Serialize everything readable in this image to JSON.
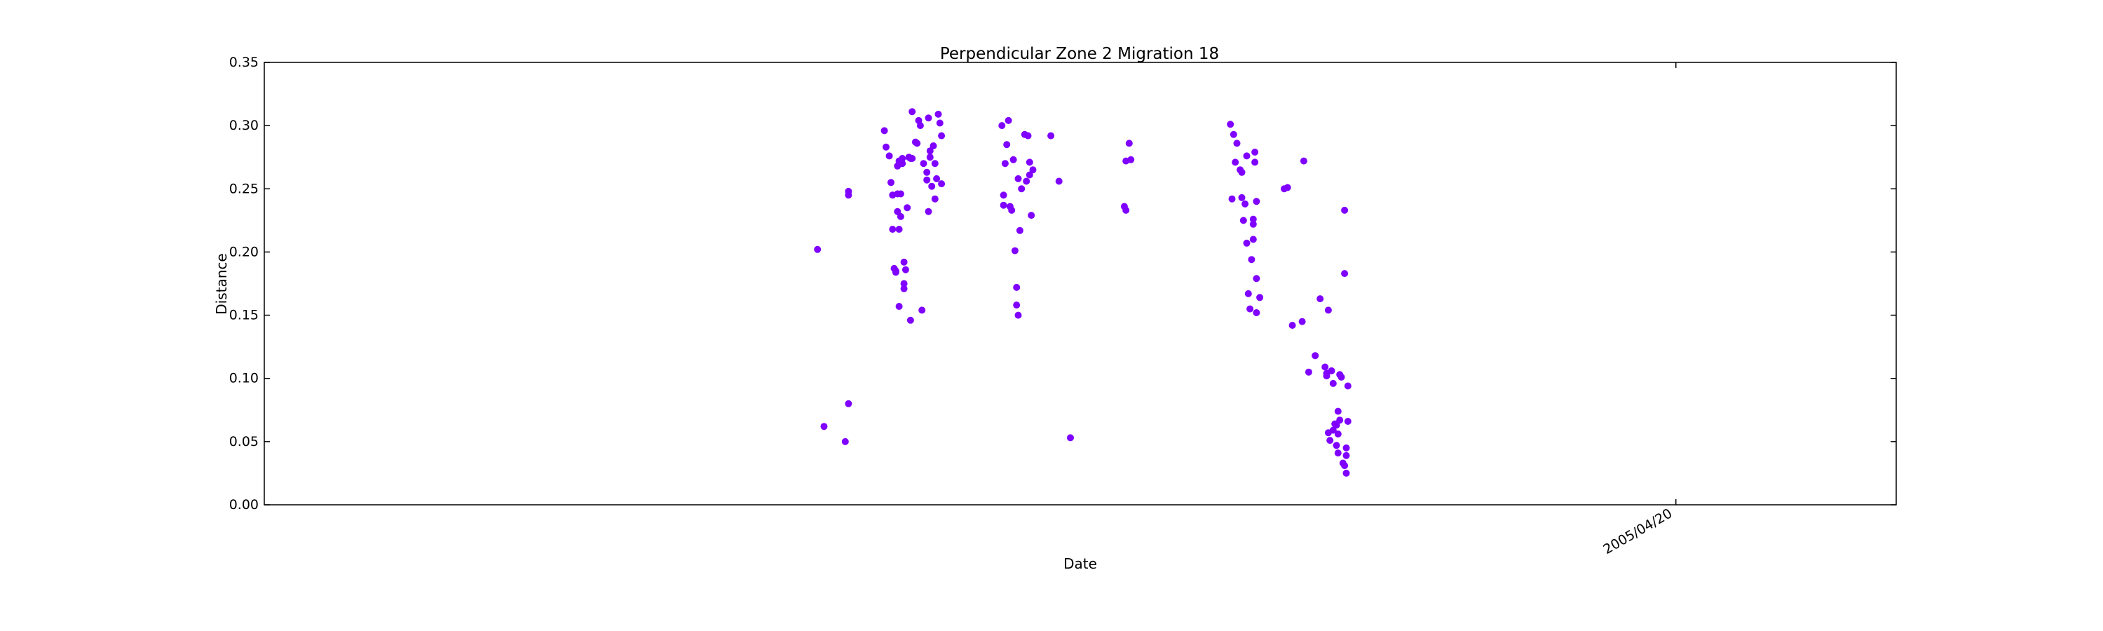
{
  "chart_data": {
    "type": "scatter",
    "title": "Perpendicular Zone 2 Migration 18",
    "xlabel": "Date",
    "ylabel": "Distance",
    "ylim": [
      0,
      0.35
    ],
    "y_ticks": [
      "0.00",
      "0.05",
      "0.10",
      "0.15",
      "0.20",
      "0.25",
      "0.30",
      "0.35"
    ],
    "x_ticks": [
      {
        "label": "2005/04/20",
        "x": 0.865
      }
    ],
    "xlim": [
      0,
      1
    ],
    "grid": false,
    "legend": "none",
    "marker_color": "#7f00ff",
    "points": [
      [
        0.339,
        0.202
      ],
      [
        0.343,
        0.062
      ],
      [
        0.356,
        0.05
      ],
      [
        0.358,
        0.08
      ],
      [
        0.358,
        0.248
      ],
      [
        0.358,
        0.245
      ],
      [
        0.38,
        0.296
      ],
      [
        0.381,
        0.283
      ],
      [
        0.383,
        0.276
      ],
      [
        0.384,
        0.255
      ],
      [
        0.385,
        0.245
      ],
      [
        0.385,
        0.218
      ],
      [
        0.386,
        0.187
      ],
      [
        0.387,
        0.184
      ],
      [
        0.387,
        0.185
      ],
      [
        0.388,
        0.268
      ],
      [
        0.388,
        0.246
      ],
      [
        0.388,
        0.232
      ],
      [
        0.389,
        0.272
      ],
      [
        0.389,
        0.218
      ],
      [
        0.389,
        0.157
      ],
      [
        0.39,
        0.246
      ],
      [
        0.39,
        0.228
      ],
      [
        0.391,
        0.27
      ],
      [
        0.391,
        0.274
      ],
      [
        0.392,
        0.192
      ],
      [
        0.392,
        0.175
      ],
      [
        0.392,
        0.171
      ],
      [
        0.393,
        0.186
      ],
      [
        0.394,
        0.235
      ],
      [
        0.395,
        0.275
      ],
      [
        0.396,
        0.274
      ],
      [
        0.396,
        0.146
      ],
      [
        0.397,
        0.311
      ],
      [
        0.397,
        0.274
      ],
      [
        0.399,
        0.287
      ],
      [
        0.4,
        0.286
      ],
      [
        0.401,
        0.304
      ],
      [
        0.402,
        0.3
      ],
      [
        0.403,
        0.154
      ],
      [
        0.404,
        0.27
      ],
      [
        0.406,
        0.263
      ],
      [
        0.406,
        0.257
      ],
      [
        0.407,
        0.306
      ],
      [
        0.407,
        0.232
      ],
      [
        0.408,
        0.28
      ],
      [
        0.408,
        0.275
      ],
      [
        0.409,
        0.252
      ],
      [
        0.41,
        0.284
      ],
      [
        0.411,
        0.27
      ],
      [
        0.411,
        0.242
      ],
      [
        0.412,
        0.258
      ],
      [
        0.413,
        0.309
      ],
      [
        0.414,
        0.302
      ],
      [
        0.415,
        0.254
      ],
      [
        0.415,
        0.292
      ],
      [
        0.452,
        0.3
      ],
      [
        0.453,
        0.245
      ],
      [
        0.453,
        0.237
      ],
      [
        0.454,
        0.27
      ],
      [
        0.455,
        0.285
      ],
      [
        0.456,
        0.304
      ],
      [
        0.457,
        0.236
      ],
      [
        0.458,
        0.233
      ],
      [
        0.459,
        0.273
      ],
      [
        0.46,
        0.201
      ],
      [
        0.461,
        0.158
      ],
      [
        0.461,
        0.172
      ],
      [
        0.462,
        0.258
      ],
      [
        0.462,
        0.15
      ],
      [
        0.463,
        0.217
      ],
      [
        0.464,
        0.25
      ],
      [
        0.466,
        0.293
      ],
      [
        0.467,
        0.256
      ],
      [
        0.468,
        0.292
      ],
      [
        0.469,
        0.271
      ],
      [
        0.469,
        0.261
      ],
      [
        0.47,
        0.229
      ],
      [
        0.471,
        0.265
      ],
      [
        0.482,
        0.292
      ],
      [
        0.487,
        0.256
      ],
      [
        0.494,
        0.053
      ],
      [
        0.527,
        0.236
      ],
      [
        0.528,
        0.233
      ],
      [
        0.528,
        0.272
      ],
      [
        0.53,
        0.286
      ],
      [
        0.531,
        0.273
      ],
      [
        0.592,
        0.301
      ],
      [
        0.593,
        0.242
      ],
      [
        0.594,
        0.293
      ],
      [
        0.595,
        0.271
      ],
      [
        0.596,
        0.286
      ],
      [
        0.598,
        0.265
      ],
      [
        0.599,
        0.243
      ],
      [
        0.599,
        0.263
      ],
      [
        0.6,
        0.225
      ],
      [
        0.601,
        0.238
      ],
      [
        0.602,
        0.276
      ],
      [
        0.602,
        0.207
      ],
      [
        0.603,
        0.167
      ],
      [
        0.604,
        0.155
      ],
      [
        0.605,
        0.194
      ],
      [
        0.606,
        0.222
      ],
      [
        0.606,
        0.21
      ],
      [
        0.606,
        0.226
      ],
      [
        0.607,
        0.279
      ],
      [
        0.607,
        0.271
      ],
      [
        0.608,
        0.24
      ],
      [
        0.608,
        0.179
      ],
      [
        0.608,
        0.152
      ],
      [
        0.61,
        0.164
      ],
      [
        0.625,
        0.25
      ],
      [
        0.627,
        0.251
      ],
      [
        0.63,
        0.142
      ],
      [
        0.636,
        0.145
      ],
      [
        0.637,
        0.272
      ],
      [
        0.64,
        0.105
      ],
      [
        0.644,
        0.118
      ],
      [
        0.647,
        0.163
      ],
      [
        0.65,
        0.109
      ],
      [
        0.651,
        0.104
      ],
      [
        0.651,
        0.102
      ],
      [
        0.652,
        0.057
      ],
      [
        0.652,
        0.154
      ],
      [
        0.653,
        0.051
      ],
      [
        0.654,
        0.106
      ],
      [
        0.655,
        0.059
      ],
      [
        0.655,
        0.096
      ],
      [
        0.656,
        0.064
      ],
      [
        0.657,
        0.063
      ],
      [
        0.657,
        0.047
      ],
      [
        0.658,
        0.056
      ],
      [
        0.658,
        0.074
      ],
      [
        0.658,
        0.041
      ],
      [
        0.659,
        0.103
      ],
      [
        0.659,
        0.067
      ],
      [
        0.66,
        0.101
      ],
      [
        0.661,
        0.033
      ],
      [
        0.662,
        0.031
      ],
      [
        0.662,
        0.183
      ],
      [
        0.662,
        0.233
      ],
      [
        0.663,
        0.045
      ],
      [
        0.663,
        0.039
      ],
      [
        0.663,
        0.025
      ],
      [
        0.664,
        0.066
      ],
      [
        0.664,
        0.094
      ]
    ]
  }
}
